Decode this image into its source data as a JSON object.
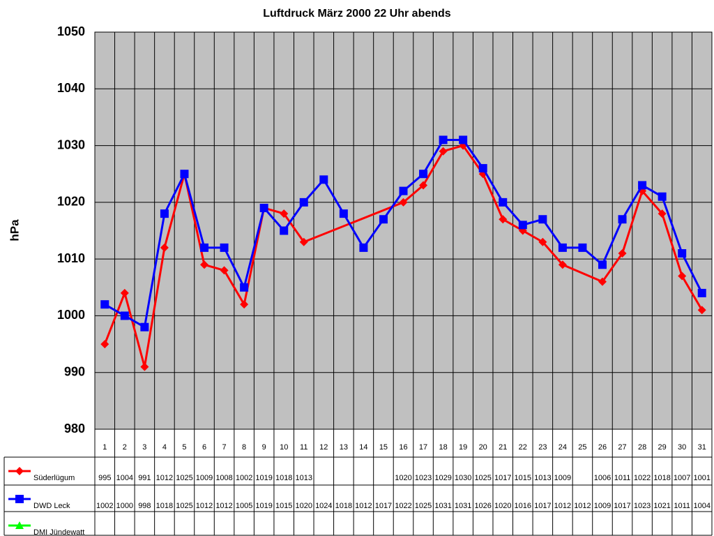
{
  "chart_data": {
    "type": "line",
    "title": "Luftdruck März 2000 22 Uhr abends",
    "y_label": "hPa",
    "categories": [
      "1",
      "2",
      "3",
      "4",
      "5",
      "6",
      "7",
      "8",
      "9",
      "10",
      "11",
      "12",
      "13",
      "14",
      "15",
      "16",
      "17",
      "18",
      "19",
      "20",
      "21",
      "22",
      "23",
      "24",
      "25",
      "26",
      "27",
      "28",
      "29",
      "30",
      "31"
    ],
    "series": [
      {
        "name": "Süderlügum",
        "color": "#ff0000",
        "marker": "diamond",
        "values": [
          995,
          1004,
          991,
          1012,
          1025,
          1009,
          1008,
          1002,
          1019,
          1018,
          1013,
          null,
          null,
          null,
          null,
          1020,
          1023,
          1029,
          1030,
          1025,
          1017,
          1015,
          1013,
          1009,
          null,
          1006,
          1011,
          1022,
          1018,
          1007,
          1001
        ]
      },
      {
        "name": "DWD Leck",
        "color": "#0000ff",
        "marker": "square",
        "values": [
          1002,
          1000,
          998,
          1018,
          1025,
          1012,
          1012,
          1005,
          1019,
          1015,
          1020,
          1024,
          1018,
          1012,
          1017,
          1022,
          1025,
          1031,
          1031,
          1026,
          1020,
          1016,
          1017,
          1012,
          1012,
          1009,
          1017,
          1023,
          1021,
          1011,
          1004
        ]
      },
      {
        "name": "DMI Jündewatt",
        "color": "#00ff00",
        "marker": "triangle",
        "values": [
          null,
          null,
          null,
          null,
          null,
          null,
          null,
          null,
          null,
          null,
          null,
          null,
          null,
          null,
          null,
          null,
          null,
          null,
          null,
          null,
          null,
          null,
          null,
          null,
          null,
          null,
          null,
          null,
          null,
          null,
          null
        ]
      }
    ],
    "ylim": [
      980,
      1050
    ],
    "yticks": [
      980,
      990,
      1000,
      1010,
      1020,
      1030,
      1040,
      1050
    ],
    "grid": true,
    "plot_background": "#c0c0c0",
    "data_table": true
  }
}
